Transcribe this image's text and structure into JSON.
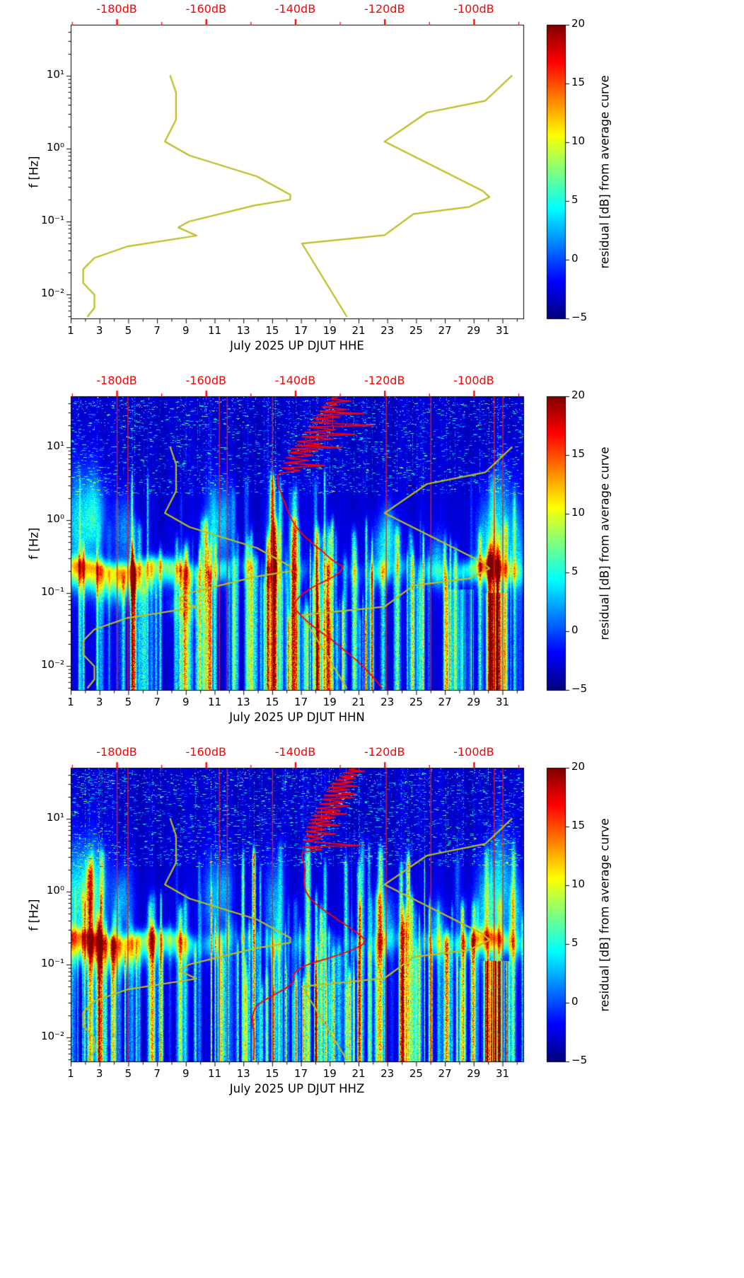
{
  "figure": {
    "y_axis": {
      "label": "f [Hz]",
      "tick_labels": [
        "10¹",
        "10⁰",
        "10⁻¹",
        "10⁻²"
      ],
      "tick_values": [
        10,
        1,
        0.1,
        0.01
      ],
      "freq_range_hz": [
        0.0047,
        50
      ]
    },
    "x_axis": {
      "tick_labels": [
        "1",
        "3",
        "5",
        "7",
        "9",
        "11",
        "13",
        "15",
        "17",
        "19",
        "21",
        "23",
        "25",
        "27",
        "29",
        "31"
      ],
      "tick_values": [
        1,
        3,
        5,
        7,
        9,
        11,
        13,
        15,
        17,
        19,
        21,
        23,
        25,
        27,
        29,
        31
      ]
    },
    "top_axis": {
      "tick_labels": [
        "-180dB",
        "-160dB",
        "-140dB",
        "-120dB",
        "-100dB"
      ],
      "tick_values": [
        -180,
        -160,
        -140,
        -120,
        -100
      ],
      "color": "#ff0000"
    },
    "colorbar": {
      "label": "residual [dB] from average curve",
      "tick_labels": [
        "20",
        "15",
        "10",
        "5",
        "0",
        "−5"
      ],
      "tick_values": [
        20,
        15,
        10,
        5,
        0,
        -5
      ],
      "vmin": -5,
      "vmax": 20,
      "colormap": "jet"
    },
    "colors": {
      "noise_model_curve": "#bcbd22",
      "psd_curve": "#ff0000",
      "event_line": "#dd2020"
    },
    "noise_models": {
      "nlnm_freq_db": [
        [
          10,
          -168.0
        ],
        [
          5.88,
          -166.7
        ],
        [
          2.5,
          -166.7
        ],
        [
          1.25,
          -169.2
        ],
        [
          0.806,
          -163.7
        ],
        [
          0.417,
          -148.6
        ],
        [
          0.233,
          -141.1
        ],
        [
          0.2,
          -141.1
        ],
        [
          0.167,
          -149.0
        ],
        [
          0.1,
          -163.8
        ],
        [
          0.083,
          -166.2
        ],
        [
          0.064,
          -162.1
        ],
        [
          0.0457,
          -177.5
        ],
        [
          0.0316,
          -185.0
        ],
        [
          0.0222,
          -187.5
        ],
        [
          0.0143,
          -187.5
        ],
        [
          0.0099,
          -185.0
        ],
        [
          0.0065,
          -185.0
        ],
        [
          0.005,
          -186.5
        ]
      ],
      "nhnm_freq_db": [
        [
          10,
          -91.5
        ],
        [
          4.55,
          -97.4
        ],
        [
          3.13,
          -110.5
        ],
        [
          1.25,
          -120.0
        ],
        [
          0.263,
          -98.0
        ],
        [
          0.217,
          -96.5
        ],
        [
          0.159,
          -101.0
        ],
        [
          0.127,
          -113.5
        ],
        [
          0.065,
          -120.0
        ],
        [
          0.05,
          -138.5
        ],
        [
          0.005,
          -128.5
        ]
      ]
    }
  },
  "chart_data": [
    {
      "type": "line",
      "channel": "HHE",
      "xlabel": "July 2025 UP DJUT  HHE",
      "has_spectrogram": false
    },
    {
      "type": "heatmap",
      "channel": "HHN",
      "xlabel": "July 2025 UP DJUT  HHN",
      "has_spectrogram": true,
      "seed": 101,
      "stripe_count": 150,
      "dash_count": 2200,
      "event_days": [
        4.2,
        4.95,
        11.3,
        11.85,
        15.0,
        22.9,
        26.0,
        30.4,
        31.0
      ],
      "band_blobs": [
        [
          1.2,
          0.5,
          7
        ],
        [
          2.2,
          0.8,
          8
        ],
        [
          3.5,
          0.9,
          8
        ],
        [
          4.8,
          0.7,
          7
        ],
        [
          6.0,
          0.8,
          7
        ],
        [
          7.2,
          0.7,
          6
        ],
        [
          8.3,
          0.6,
          6.5
        ],
        [
          9.2,
          0.4,
          5
        ],
        [
          10.8,
          0.5,
          4
        ],
        [
          11.6,
          0.4,
          4
        ],
        [
          13.2,
          0.3,
          3
        ],
        [
          15.1,
          0.3,
          3.5
        ],
        [
          17.0,
          0.3,
          2.5
        ],
        [
          19.0,
          0.3,
          2.5
        ],
        [
          20.8,
          0.3,
          3
        ],
        [
          22.6,
          0.5,
          5
        ],
        [
          24.0,
          0.3,
          3
        ],
        [
          25.5,
          0.3,
          3
        ],
        [
          26.5,
          0.4,
          4
        ],
        [
          28.2,
          0.5,
          5
        ],
        [
          29.3,
          0.5,
          7
        ],
        [
          30.1,
          0.5,
          8
        ],
        [
          30.9,
          0.4,
          6
        ],
        [
          31.8,
          0.4,
          5
        ]
      ],
      "blobs": [
        [
          1.6,
          0.8,
          -0.05,
          0.5,
          6.5
        ],
        [
          2.7,
          0.5,
          0.1,
          0.35,
          5
        ],
        [
          4.7,
          0.45,
          -0.15,
          0.35,
          4.5
        ],
        [
          8.8,
          0.8,
          -1.2,
          0.12,
          3.5
        ],
        [
          10.9,
          0.5,
          -0.1,
          0.4,
          5
        ],
        [
          11.7,
          0.35,
          0.0,
          0.35,
          4
        ],
        [
          15.1,
          0.35,
          -0.2,
          0.45,
          5.5
        ],
        [
          22.7,
          0.55,
          -0.4,
          0.3,
          6
        ],
        [
          23.1,
          0.3,
          -0.15,
          0.3,
          4
        ],
        [
          26.4,
          0.4,
          -0.55,
          0.25,
          5
        ],
        [
          29.9,
          0.55,
          -0.35,
          0.45,
          6
        ],
        [
          30.9,
          0.5,
          0.1,
          0.5,
          5
        ],
        [
          31.9,
          0.4,
          -0.3,
          0.4,
          5
        ]
      ],
      "needle_clusters": [
        [
          16,
          21.5,
          30
        ]
      ],
      "hot": [
        [
          26.9,
          29.2,
          5.5,
          -0.95
        ],
        [
          29.55,
          31.4,
          10,
          -1.0
        ]
      ],
      "red_psd_freq_db": [
        [
          50,
          -130
        ],
        [
          46,
          -132
        ],
        [
          43,
          -127.5
        ],
        [
          41,
          -133
        ],
        [
          38,
          -130.5
        ],
        [
          36,
          -134
        ],
        [
          33,
          -128.5
        ],
        [
          31,
          -134.5
        ],
        [
          29,
          -124.5
        ],
        [
          28,
          -135
        ],
        [
          26,
          -130
        ],
        [
          25,
          -136
        ],
        [
          23,
          -131
        ],
        [
          22,
          -136.5
        ],
        [
          20,
          -122.5
        ],
        [
          19,
          -137
        ],
        [
          17.5,
          -131
        ],
        [
          16,
          -138
        ],
        [
          15,
          -126.5
        ],
        [
          14,
          -138.5
        ],
        [
          13,
          -131.5
        ],
        [
          12,
          -139.5
        ],
        [
          11,
          -134
        ],
        [
          10.5,
          -140
        ],
        [
          10,
          -129.5
        ],
        [
          9.5,
          -141
        ],
        [
          9,
          -135
        ],
        [
          8.5,
          -141.5
        ],
        [
          7.8,
          -136
        ],
        [
          7.2,
          -142
        ],
        [
          6.6,
          -137
        ],
        [
          6.1,
          -142.5
        ],
        [
          5.6,
          -133.5
        ],
        [
          5.2,
          -143
        ],
        [
          4.8,
          -139
        ],
        [
          4.4,
          -143.5
        ],
        [
          4,
          -144
        ],
        [
          3.6,
          -143.8
        ],
        [
          3.2,
          -144
        ],
        [
          2.8,
          -143.6
        ],
        [
          2.4,
          -143.2
        ],
        [
          2,
          -142.8
        ],
        [
          1.7,
          -142.3
        ],
        [
          1.4,
          -141.8
        ],
        [
          1.15,
          -141.2
        ],
        [
          0.95,
          -140.5
        ],
        [
          0.78,
          -139.6
        ],
        [
          0.64,
          -138.4
        ],
        [
          0.52,
          -136.8
        ],
        [
          0.43,
          -135.2
        ],
        [
          0.36,
          -133.6
        ],
        [
          0.3,
          -132.2
        ],
        [
          0.26,
          -130.8
        ],
        [
          0.23,
          -129.3
        ],
        [
          0.2,
          -129.8
        ],
        [
          0.17,
          -131.2
        ],
        [
          0.145,
          -133.4
        ],
        [
          0.125,
          -135.6
        ],
        [
          0.105,
          -137.6
        ],
        [
          0.09,
          -139
        ],
        [
          0.078,
          -139.8
        ],
        [
          0.068,
          -140.2
        ],
        [
          0.058,
          -139.8
        ],
        [
          0.05,
          -138.8
        ],
        [
          0.042,
          -137.5
        ],
        [
          0.035,
          -136
        ],
        [
          0.029,
          -134.2
        ],
        [
          0.024,
          -132.3
        ],
        [
          0.019,
          -130.2
        ],
        [
          0.015,
          -128.2
        ],
        [
          0.012,
          -126.3
        ],
        [
          0.0095,
          -124.6
        ],
        [
          0.0075,
          -123
        ],
        [
          0.006,
          -121.6
        ],
        [
          0.005,
          -120.6
        ]
      ]
    },
    {
      "type": "heatmap",
      "channel": "HHZ",
      "xlabel": "July 2025 UP DJUT  HHZ",
      "has_spectrogram": true,
      "seed": 202,
      "stripe_count": 160,
      "dash_count": 2600,
      "event_days": [
        4.2,
        4.95,
        11.3,
        11.85,
        15.0,
        22.9,
        26.0,
        30.4,
        31.0
      ],
      "band_blobs": [
        [
          1.2,
          0.5,
          7
        ],
        [
          2.2,
          0.8,
          8
        ],
        [
          3.5,
          0.9,
          7.5
        ],
        [
          4.8,
          0.7,
          7
        ],
        [
          6.0,
          0.8,
          6.5
        ],
        [
          7.2,
          0.7,
          6
        ],
        [
          8.3,
          0.6,
          6
        ],
        [
          9.2,
          0.4,
          5
        ],
        [
          10.8,
          0.5,
          4
        ],
        [
          11.6,
          0.4,
          4
        ],
        [
          13.2,
          0.3,
          3
        ],
        [
          15.1,
          0.3,
          3.5
        ],
        [
          17.0,
          0.3,
          2.5
        ],
        [
          19.0,
          0.3,
          2.5
        ],
        [
          20.8,
          0.3,
          3
        ],
        [
          22.6,
          0.5,
          5
        ],
        [
          24.0,
          0.3,
          3
        ],
        [
          25.5,
          0.3,
          3
        ],
        [
          26.5,
          0.4,
          4
        ],
        [
          28.2,
          0.5,
          5
        ],
        [
          29.3,
          0.5,
          6.5
        ],
        [
          30.1,
          0.5,
          7.5
        ],
        [
          30.9,
          0.4,
          6
        ],
        [
          31.8,
          0.4,
          5
        ]
      ],
      "blobs": [
        [
          1.5,
          0.9,
          -0.1,
          0.5,
          7
        ],
        [
          2.6,
          0.6,
          0.05,
          0.4,
          6
        ],
        [
          4.6,
          0.5,
          -0.1,
          0.35,
          5
        ],
        [
          10.9,
          0.5,
          -0.1,
          0.4,
          5
        ],
        [
          11.8,
          0.35,
          0.05,
          0.3,
          4
        ],
        [
          15.1,
          0.4,
          -0.2,
          0.45,
          5.5
        ],
        [
          22.7,
          0.55,
          -0.4,
          0.3,
          6
        ],
        [
          26.4,
          0.4,
          -0.5,
          0.25,
          5
        ],
        [
          29.9,
          0.6,
          -0.3,
          0.5,
          6.5
        ],
        [
          30.9,
          0.5,
          0.15,
          0.55,
          5.5
        ],
        [
          31.9,
          0.4,
          -0.3,
          0.4,
          5
        ]
      ],
      "needle_clusters": [
        [
          13,
          21.5,
          40
        ]
      ],
      "hot": [
        [
          27.8,
          28.4,
          5,
          -1.05
        ],
        [
          29.5,
          31.6,
          16,
          -0.95
        ]
      ],
      "red_psd_freq_db": [
        [
          50,
          -126
        ],
        [
          47,
          -128
        ],
        [
          45,
          -124.5
        ],
        [
          43,
          -129
        ],
        [
          40,
          -126
        ],
        [
          38,
          -130
        ],
        [
          36,
          -126.5
        ],
        [
          34,
          -131
        ],
        [
          32,
          -127
        ],
        [
          30,
          -132
        ],
        [
          28,
          -126
        ],
        [
          27,
          -132.5
        ],
        [
          25,
          -128
        ],
        [
          24,
          -133
        ],
        [
          22,
          -126.5
        ],
        [
          21,
          -133.5
        ],
        [
          19.5,
          -127
        ],
        [
          18.5,
          -134
        ],
        [
          17,
          -129
        ],
        [
          16,
          -134.5
        ],
        [
          15,
          -128
        ],
        [
          14,
          -135
        ],
        [
          13,
          -130
        ],
        [
          12.4,
          -135.5
        ],
        [
          11.7,
          -128.5
        ],
        [
          11,
          -136
        ],
        [
          10.4,
          -131
        ],
        [
          9.8,
          -136.5
        ],
        [
          9.2,
          -132
        ],
        [
          8.7,
          -137
        ],
        [
          8.2,
          -130
        ],
        [
          7.7,
          -137.3
        ],
        [
          7.2,
          -133
        ],
        [
          6.7,
          -137.6
        ],
        [
          6.2,
          -131
        ],
        [
          5.8,
          -137.8
        ],
        [
          5.4,
          -134
        ],
        [
          5,
          -138
        ],
        [
          4.6,
          -132
        ],
        [
          4.3,
          -125.5
        ],
        [
          4.1,
          -138.2
        ],
        [
          3.8,
          -134
        ],
        [
          3.5,
          -138.4
        ],
        [
          3.2,
          -138.5
        ],
        [
          2.9,
          -138.4
        ],
        [
          2.6,
          -138.2
        ],
        [
          2.3,
          -138
        ],
        [
          2,
          -137.8
        ],
        [
          1.75,
          -137.9
        ],
        [
          1.5,
          -138
        ],
        [
          1.3,
          -138
        ],
        [
          1.1,
          -137.8
        ],
        [
          0.95,
          -137.4
        ],
        [
          0.8,
          -136.6
        ],
        [
          0.68,
          -135.4
        ],
        [
          0.57,
          -133.8
        ],
        [
          0.48,
          -132
        ],
        [
          0.4,
          -130.2
        ],
        [
          0.34,
          -128.4
        ],
        [
          0.29,
          -126.8
        ],
        [
          0.25,
          -125.4
        ],
        [
          0.22,
          -124.4
        ],
        [
          0.19,
          -124.8
        ],
        [
          0.165,
          -126.6
        ],
        [
          0.14,
          -129.6
        ],
        [
          0.12,
          -133
        ],
        [
          0.105,
          -136.2
        ],
        [
          0.092,
          -138.6
        ],
        [
          0.08,
          -139.9
        ],
        [
          0.07,
          -140.4
        ],
        [
          0.062,
          -140.2
        ],
        [
          0.055,
          -140.8
        ],
        [
          0.048,
          -142
        ],
        [
          0.042,
          -143.6
        ],
        [
          0.036,
          -145.6
        ],
        [
          0.031,
          -147.4
        ],
        [
          0.027,
          -148.6
        ],
        [
          0.023,
          -149.3
        ],
        [
          0.019,
          -149.6
        ],
        [
          0.015,
          -149.5
        ],
        [
          0.012,
          -149.3
        ],
        [
          0.0095,
          -149.2
        ],
        [
          0.0075,
          -149.2
        ],
        [
          0.006,
          -149.3
        ],
        [
          0.005,
          -149.4
        ]
      ]
    }
  ]
}
